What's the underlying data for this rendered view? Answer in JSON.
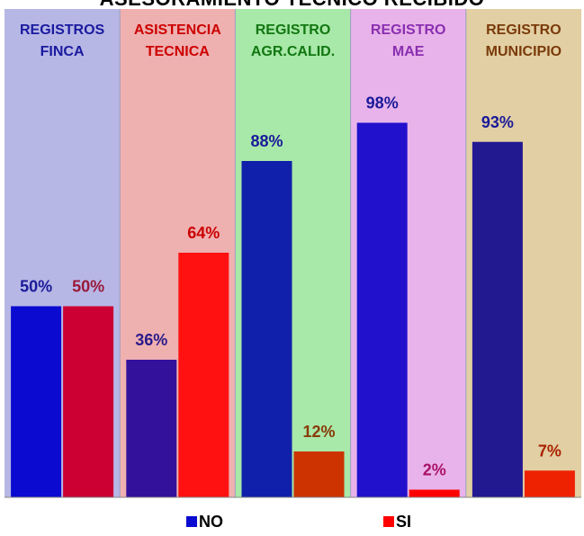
{
  "chart_data": {
    "type": "bar",
    "title": "ASESORAMIENTO TECNICO RECIBIDO",
    "categories": [
      "REGISTROS\nFINCA",
      "ASISTENCIA\nTECNICA",
      "REGISTRO\nAGR.CALID.",
      "REGISTRO\nMAE",
      "REGISTRO\nMUNICIPIO"
    ],
    "category_colors": [
      "#1a1aa0",
      "#cc0000",
      "#117711",
      "#8a2fb0",
      "#7a3a0a"
    ],
    "panel_colors": [
      "#b7b7e6",
      "#efb0b0",
      "#a8e8a8",
      "#e8b3ea",
      "#e2cfa3"
    ],
    "series": [
      {
        "name": "NO",
        "values": [
          50,
          36,
          88,
          98,
          93
        ],
        "bar_colors": [
          "#0a0ad0",
          "#33119a",
          "#1020aa",
          "#2211cc",
          "#221890"
        ],
        "label_colors": [
          "#1a1a9a",
          "#2a1a8a",
          "#1a1a9a",
          "#1a1a9a",
          "#1a1a9a"
        ]
      },
      {
        "name": "SI",
        "values": [
          50,
          64,
          12,
          2,
          7
        ],
        "bar_colors": [
          "#cc0033",
          "#ff1111",
          "#cc3300",
          "#ff0000",
          "#ee2200"
        ],
        "label_colors": [
          "#9a1a3a",
          "#cc0000",
          "#8a3a0a",
          "#aa1166",
          "#aa2200"
        ]
      }
    ],
    "value_suffix": "%",
    "ylim": [
      0,
      100
    ],
    "grid": false,
    "legend_position": "bottom"
  },
  "legend": [
    {
      "label": "NO",
      "color": "#0a0ad0"
    },
    {
      "label": "SI",
      "color": "#ff0000"
    }
  ]
}
